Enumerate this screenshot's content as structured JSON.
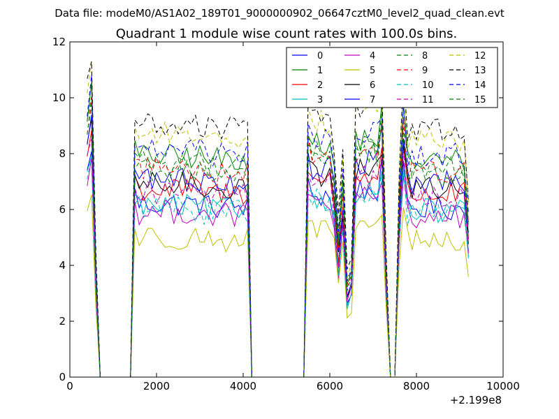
{
  "suptitle": "Data file: modeM0/AS1A02_189T01_9000000902_06647cztM0_level2_quad_clean.evt",
  "chart_data": {
    "type": "line",
    "title": "Quadrant 1 module wise count rates with 100.0s bins.",
    "xlabel": "",
    "ylabel": "",
    "xlim": [
      0,
      10000
    ],
    "ylim": [
      0,
      12
    ],
    "x_offset_label": "+2.199e8",
    "xticks": [
      0,
      2000,
      4000,
      6000,
      8000,
      10000
    ],
    "yticks": [
      0,
      2,
      4,
      6,
      8,
      10,
      12
    ],
    "x_tick_labels": [
      "0",
      "2000",
      "4000",
      "6000",
      "8000",
      "10000"
    ],
    "y_tick_labels": [
      "0",
      "2",
      "4",
      "6",
      "8",
      "10",
      "12"
    ],
    "grid": false,
    "legend_position": "top-right",
    "segments_x": [
      [
        400,
        500,
        600,
        700
      ],
      [
        1400,
        1500,
        1600,
        1700,
        1800,
        1900,
        2000,
        2100,
        2200,
        2300,
        2400,
        2500,
        2600,
        2700,
        2800,
        2900,
        3000,
        3100,
        3200,
        3300,
        3400,
        3500,
        3600,
        3700,
        3800,
        3900,
        4000,
        4100,
        4200
      ],
      [
        5400,
        5500,
        5600,
        5700,
        5800,
        5900,
        6000,
        6100,
        6200,
        6300,
        6400,
        6500,
        6600,
        6700,
        6800,
        6900,
        7000,
        7100,
        7200,
        7300,
        7400,
        7500,
        7600,
        7700,
        7800,
        7900,
        8000,
        8100,
        8200,
        8300,
        8400,
        8500,
        8600,
        8700,
        8800,
        8900,
        9000,
        9100,
        9200
      ]
    ],
    "gaps": [
      [
        700,
        1400,
        0
      ],
      [
        4200,
        5400,
        0
      ]
    ],
    "series": [
      {
        "name": "0",
        "color": "#0000ff",
        "dash": false,
        "level": 6.2
      },
      {
        "name": "1",
        "color": "#008000",
        "dash": false,
        "level": 7.9
      },
      {
        "name": "2",
        "color": "#ff0000",
        "dash": false,
        "level": 6.7
      },
      {
        "name": "3",
        "color": "#00bfbf",
        "dash": false,
        "level": 6.1
      },
      {
        "name": "4",
        "color": "#bf00bf",
        "dash": false,
        "level": 5.9
      },
      {
        "name": "5",
        "color": "#bfbf00",
        "dash": false,
        "level": 5.0
      },
      {
        "name": "6",
        "color": "#000000",
        "dash": false,
        "level": 6.9
      },
      {
        "name": "7",
        "color": "#0000ff",
        "dash": false,
        "level": 7.1
      },
      {
        "name": "8",
        "color": "#008000",
        "dash": true,
        "level": 7.7
      },
      {
        "name": "9",
        "color": "#ff0000",
        "dash": true,
        "level": 7.5
      },
      {
        "name": "10",
        "color": "#00bfbf",
        "dash": true,
        "level": 6.0
      },
      {
        "name": "11",
        "color": "#bf00bf",
        "dash": true,
        "level": 6.6
      },
      {
        "name": "12",
        "color": "#bfbf00",
        "dash": true,
        "level": 8.7
      },
      {
        "name": "13",
        "color": "#000000",
        "dash": true,
        "level": 9.0
      },
      {
        "name": "14",
        "color": "#0000ff",
        "dash": true,
        "level": 8.1
      },
      {
        "name": "15",
        "color": "#008000",
        "dash": true,
        "level": 7.4
      }
    ]
  }
}
